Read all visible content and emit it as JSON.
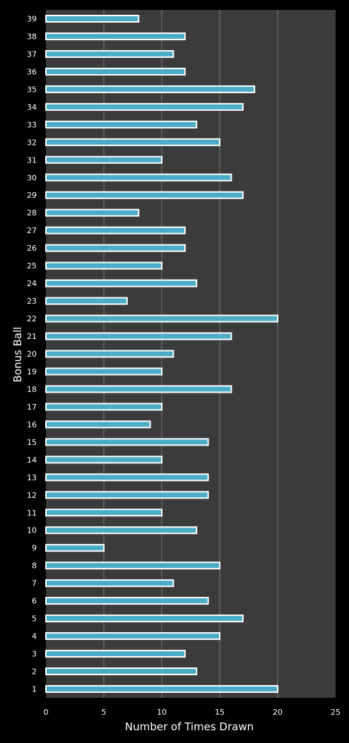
{
  "chart_data": {
    "type": "bar",
    "orientation": "horizontal",
    "xlabel": "Number of Times Drawn",
    "ylabel": "Bonus Ball",
    "xlim": [
      0,
      25
    ],
    "xticks": [
      "0",
      "5",
      "10",
      "15",
      "20",
      "25"
    ],
    "grid": true,
    "colors": {
      "plot_bg": "#3b3b3b",
      "bar_fill": "#4bacc6",
      "bar_border": "#ffffff",
      "grid": "#7a7a7a",
      "page_bg": "#000000"
    },
    "categories": [
      "1",
      "2",
      "3",
      "4",
      "5",
      "6",
      "7",
      "8",
      "9",
      "10",
      "11",
      "12",
      "13",
      "14",
      "15",
      "16",
      "17",
      "18",
      "19",
      "20",
      "21",
      "22",
      "23",
      "24",
      "25",
      "26",
      "27",
      "28",
      "29",
      "30",
      "31",
      "32",
      "33",
      "34",
      "35",
      "36",
      "37",
      "38",
      "39"
    ],
    "values": [
      20,
      13,
      12,
      15,
      17,
      14,
      11,
      15,
      5,
      13,
      10,
      14,
      14,
      10,
      14,
      9,
      10,
      16,
      10,
      11,
      16,
      20,
      7,
      13,
      10,
      12,
      12,
      8,
      17,
      16,
      10,
      15,
      13,
      17,
      18,
      12,
      11,
      12,
      8
    ]
  }
}
